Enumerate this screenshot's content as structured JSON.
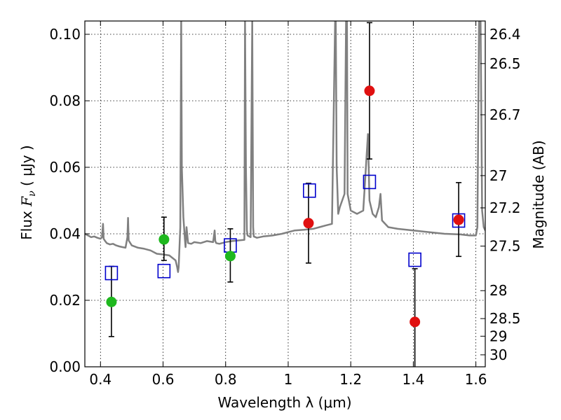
{
  "chart_data": {
    "type": "scatter",
    "xlabel": "Wavelength  λ (μm)",
    "ylabel_text": "Flux  ",
    "ylabel_symbol": "F",
    "ylabel_subscript": "ν",
    "ylabel_unit": " ( μJy )",
    "y2label": "Magnitude (AB)",
    "xlim": [
      0.35,
      1.63
    ],
    "ylim": [
      0.0,
      0.104
    ],
    "grid": true,
    "x_ticks": [
      0.4,
      0.6,
      0.8,
      1.0,
      1.2,
      1.4,
      1.6
    ],
    "x_tick_labels": [
      "0.4",
      "0.6",
      "0.8",
      "1",
      "1.2",
      "1.4",
      "1.6"
    ],
    "y_ticks": [
      0.0,
      0.02,
      0.04,
      0.06,
      0.08,
      0.1
    ],
    "y_tick_labels": [
      "0.00",
      "0.02",
      "0.04",
      "0.06",
      "0.08",
      "0.10"
    ],
    "magnitude_ticks": [
      {
        "label": "26.4",
        "flux": 0.1
      },
      {
        "label": "26.5",
        "flux": 0.0912
      },
      {
        "label": "26.7",
        "flux": 0.0758
      },
      {
        "label": "27",
        "flux": 0.0575
      },
      {
        "label": "27.2",
        "flux": 0.0478
      },
      {
        "label": "27.5",
        "flux": 0.0363
      },
      {
        "label": "28",
        "flux": 0.0229
      },
      {
        "label": "28.5",
        "flux": 0.0145
      },
      {
        "label": "29",
        "flux": 0.0092
      },
      {
        "label": "30",
        "flux": 0.0036
      }
    ],
    "series": [
      {
        "name": "green_points",
        "marker": "circle",
        "color": "#1fb81f",
        "points": [
          {
            "x": 0.435,
            "y": 0.0195,
            "err_lo": 0.0104,
            "err_hi": 0.0107
          },
          {
            "x": 0.603,
            "y": 0.0383,
            "err_lo": 0.0063,
            "err_hi": 0.0067
          },
          {
            "x": 0.815,
            "y": 0.0333,
            "err_lo": 0.0078,
            "err_hi": 0.0082
          }
        ]
      },
      {
        "name": "red_points",
        "marker": "circle",
        "color": "#e01010",
        "points": [
          {
            "x": 1.065,
            "y": 0.0432,
            "err_lo": 0.012,
            "err_hi": 0.012
          },
          {
            "x": 1.26,
            "y": 0.083,
            "err_lo": 0.0205,
            "err_hi": 0.0205
          },
          {
            "x": 1.405,
            "y": 0.0135,
            "err_lo": 0.016,
            "err_hi": 0.016
          },
          {
            "x": 1.545,
            "y": 0.0442,
            "err_lo": 0.011,
            "err_hi": 0.0112
          }
        ]
      },
      {
        "name": "model_photometry",
        "marker": "square-open",
        "color": "#0000cc",
        "points": [
          {
            "x": 0.435,
            "y": 0.0282
          },
          {
            "x": 0.603,
            "y": 0.0288
          },
          {
            "x": 0.815,
            "y": 0.0365
          },
          {
            "x": 1.068,
            "y": 0.053
          },
          {
            "x": 1.26,
            "y": 0.0556
          },
          {
            "x": 1.405,
            "y": 0.0322
          },
          {
            "x": 1.545,
            "y": 0.044
          }
        ]
      }
    ],
    "spectrum": {
      "name": "model_spectrum",
      "color": "#808080",
      "x": [
        0.35,
        0.36,
        0.37,
        0.38,
        0.39,
        0.4,
        0.405,
        0.408,
        0.41,
        0.415,
        0.42,
        0.43,
        0.44,
        0.45,
        0.46,
        0.47,
        0.48,
        0.486,
        0.488,
        0.49,
        0.5,
        0.52,
        0.54,
        0.56,
        0.58,
        0.6,
        0.62,
        0.64,
        0.645,
        0.648,
        0.65,
        0.655,
        0.658,
        0.6575,
        0.658,
        0.66,
        0.665,
        0.67,
        0.672,
        0.675,
        0.68,
        0.69,
        0.7,
        0.72,
        0.74,
        0.76,
        0.765,
        0.767,
        0.77,
        0.78,
        0.8,
        0.82,
        0.84,
        0.86,
        0.862,
        0.865,
        0.868,
        0.87,
        0.88,
        0.885,
        0.888,
        0.89,
        0.9,
        0.92,
        0.95,
        0.98,
        1.0,
        1.02,
        1.05,
        1.08,
        1.1,
        1.12,
        1.14,
        1.15,
        1.152,
        1.155,
        1.16,
        1.165,
        1.18,
        1.185,
        1.188,
        1.19,
        1.2,
        1.22,
        1.24,
        1.255,
        1.26,
        1.27,
        1.28,
        1.29,
        1.295,
        1.3,
        1.32,
        1.35,
        1.4,
        1.45,
        1.5,
        1.55,
        1.58,
        1.6,
        1.605,
        1.61,
        1.615,
        1.62,
        1.625,
        1.63
      ],
      "y": [
        0.04,
        0.0395,
        0.039,
        0.0392,
        0.0388,
        0.0385,
        0.039,
        0.043,
        0.0385,
        0.0378,
        0.0372,
        0.0368,
        0.037,
        0.0365,
        0.0362,
        0.036,
        0.0358,
        0.039,
        0.0448,
        0.038,
        0.0365,
        0.0358,
        0.0355,
        0.035,
        0.034,
        0.0338,
        0.0335,
        0.032,
        0.03,
        0.0285,
        0.03,
        0.042,
        0.104,
        0.104,
        0.104,
        0.06,
        0.045,
        0.038,
        0.036,
        0.042,
        0.0372,
        0.037,
        0.0375,
        0.0372,
        0.0378,
        0.0375,
        0.041,
        0.0378,
        0.0372,
        0.037,
        0.0375,
        0.0378,
        0.038,
        0.0382,
        0.104,
        0.06,
        0.041,
        0.0395,
        0.039,
        0.104,
        0.042,
        0.0392,
        0.0388,
        0.0392,
        0.0395,
        0.04,
        0.0405,
        0.041,
        0.0412,
        0.0415,
        0.042,
        0.0425,
        0.043,
        0.104,
        0.104,
        0.06,
        0.046,
        0.048,
        0.052,
        0.104,
        0.104,
        0.052,
        0.047,
        0.046,
        0.047,
        0.07,
        0.05,
        0.046,
        0.045,
        0.048,
        0.052,
        0.044,
        0.042,
        0.0415,
        0.041,
        0.0405,
        0.04,
        0.0398,
        0.0395,
        0.0395,
        0.042,
        0.104,
        0.104,
        0.047,
        0.042,
        0.041
      ]
    }
  }
}
